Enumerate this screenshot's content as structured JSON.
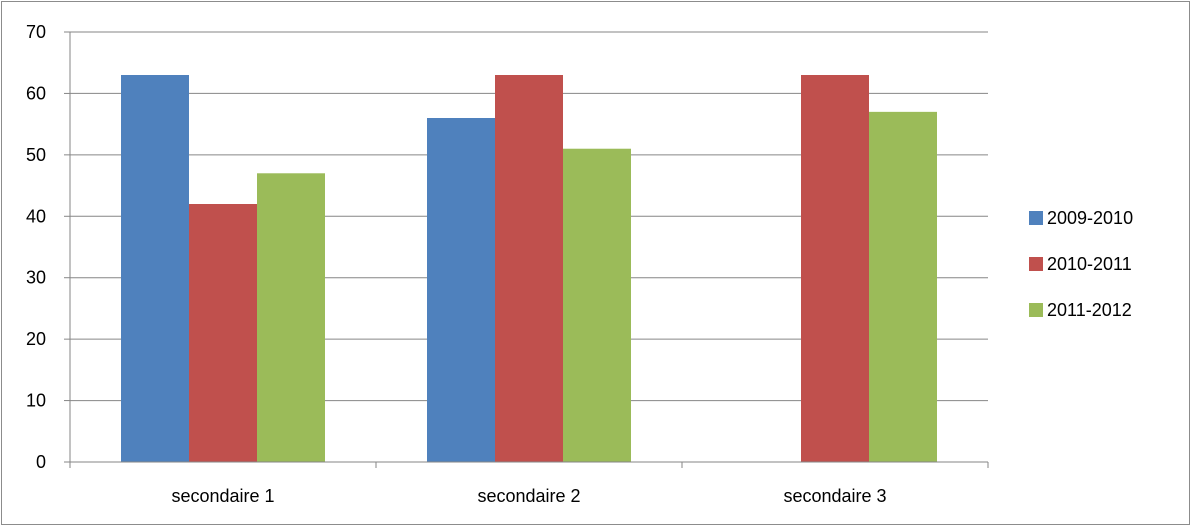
{
  "chart_data": {
    "type": "bar",
    "title": "",
    "xlabel": "",
    "ylabel": "",
    "categories": [
      "secondaire 1",
      "secondaire 2",
      "secondaire 3"
    ],
    "series": [
      {
        "name": "2009-2010",
        "color": "#4f81bd",
        "values": [
          63,
          56,
          0
        ]
      },
      {
        "name": "2010-2011",
        "color": "#c0504d",
        "values": [
          42,
          63,
          63
        ]
      },
      {
        "name": "2011-2012",
        "color": "#9bbb59",
        "values": [
          47,
          51,
          57
        ]
      }
    ],
    "ylim": [
      0,
      70
    ],
    "yticks": [
      "0",
      "10",
      "20",
      "30",
      "40",
      "50",
      "60",
      "70"
    ],
    "grid": true,
    "legend_position": "right"
  }
}
